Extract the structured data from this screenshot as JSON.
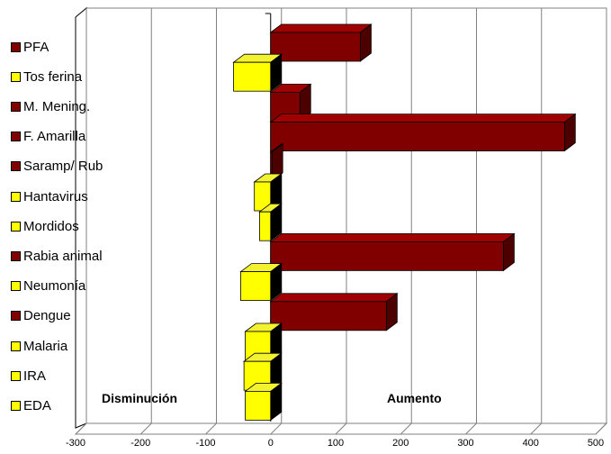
{
  "chart_data": {
    "type": "bar",
    "orientation": "horizontal",
    "style": "3d",
    "categories": [
      "PFA",
      "Tos ferina",
      "M. Mening.",
      "F. Amarilla",
      "Saramp/ Rub",
      "Hantavirus",
      "Mordidos",
      "Rabia animal",
      "Neumonía",
      "Dengue",
      "Malaria",
      "IRA",
      "EDA"
    ],
    "values": [
      138,
      -57,
      45,
      452,
      2,
      -25,
      -17,
      358,
      -46,
      178,
      -39,
      -41,
      -39
    ],
    "xlim": [
      -300,
      500
    ],
    "xticks": [
      -300,
      -200,
      -100,
      0,
      100,
      200,
      300,
      400,
      500
    ],
    "grid": true,
    "legend": "inline-left",
    "annotations": {
      "left": "Disminución",
      "right": "Aumento"
    },
    "colors": {
      "positive": "#800000",
      "positive_top": "#a00000",
      "positive_side": "#4d0000",
      "negative": "#ffff00",
      "negative_top": "#f2f230",
      "negative_side": "#c8c800"
    }
  }
}
